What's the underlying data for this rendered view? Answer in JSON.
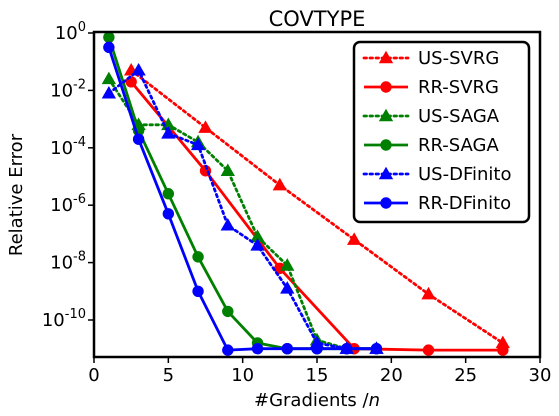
{
  "chart_data": {
    "type": "line",
    "title": "COVTYPE",
    "xlabel": "#Gradients /",
    "xlabel_italic": "n",
    "ylabel": "Relative Error",
    "xlim": [
      0,
      30
    ],
    "ylim_log10": [
      -11.5,
      0
    ],
    "yscale": "log",
    "xticks": [
      0,
      5,
      10,
      15,
      20,
      25,
      30
    ],
    "xtick_labels": [
      "0",
      "5",
      "10",
      "15",
      "20",
      "25",
      "30"
    ],
    "yticks_log10": [
      0,
      -2,
      -4,
      -6,
      -8,
      -10
    ],
    "ytick_bases": [
      "10",
      "10",
      "10",
      "10",
      "10",
      "10"
    ],
    "ytick_exponents": [
      "0",
      "-2",
      "-4",
      "-6",
      "-8",
      "-10"
    ],
    "grid": false,
    "legend_position": "top-right",
    "series": [
      {
        "name": "US-SVRG",
        "color": "#ff0000",
        "style": "dotted",
        "marker": "triangle",
        "x": [
          2.5,
          7.5,
          12.5,
          17.5,
          22.5,
          27.5
        ],
        "y_log10": [
          -1.3,
          -3.3,
          -5.3,
          -7.2,
          -9.1,
          -10.8
        ]
      },
      {
        "name": "RR-SVRG",
        "color": "#ff0000",
        "style": "solid",
        "marker": "circle",
        "x": [
          2.5,
          7.5,
          12.5,
          17.5,
          22.5,
          27.5
        ],
        "y_log10": [
          -1.7,
          -4.8,
          -8.2,
          -11.0,
          -11.05,
          -11.05
        ]
      },
      {
        "name": "US-SAGA",
        "color": "#008000",
        "style": "dotted",
        "marker": "triangle",
        "x": [
          1,
          3,
          5,
          7,
          9,
          11,
          13,
          15,
          17,
          19
        ],
        "y_log10": [
          -1.6,
          -3.2,
          -3.2,
          -3.8,
          -4.8,
          -7.1,
          -8.1,
          -10.7,
          -11.0,
          -11.0
        ]
      },
      {
        "name": "RR-SAGA",
        "color": "#008000",
        "style": "solid",
        "marker": "circle",
        "x": [
          1,
          3,
          5,
          7,
          9,
          11,
          13,
          15,
          17,
          19
        ],
        "y_log10": [
          -0.15,
          -3.4,
          -5.6,
          -7.8,
          -9.7,
          -10.8,
          -11.0,
          -11.0,
          -11.0,
          -11.0
        ]
      },
      {
        "name": "US-DFinito",
        "color": "#0000ff",
        "style": "dotted",
        "marker": "triangle",
        "x": [
          1,
          3,
          5,
          7,
          9,
          11,
          13,
          15,
          17,
          19
        ],
        "y_log10": [
          -2.1,
          -1.3,
          -3.5,
          -3.9,
          -6.7,
          -7.4,
          -8.9,
          -10.8,
          -11.0,
          -11.0
        ]
      },
      {
        "name": "RR-DFinito",
        "color": "#0000ff",
        "style": "solid",
        "marker": "circle",
        "x": [
          1,
          3,
          5,
          7,
          9,
          11,
          13,
          15,
          17,
          19
        ],
        "y_log10": [
          -0.5,
          -3.7,
          -6.3,
          -9.0,
          -11.05,
          -11.0,
          -11.0,
          -11.0,
          -11.0,
          -11.0
        ]
      }
    ]
  }
}
